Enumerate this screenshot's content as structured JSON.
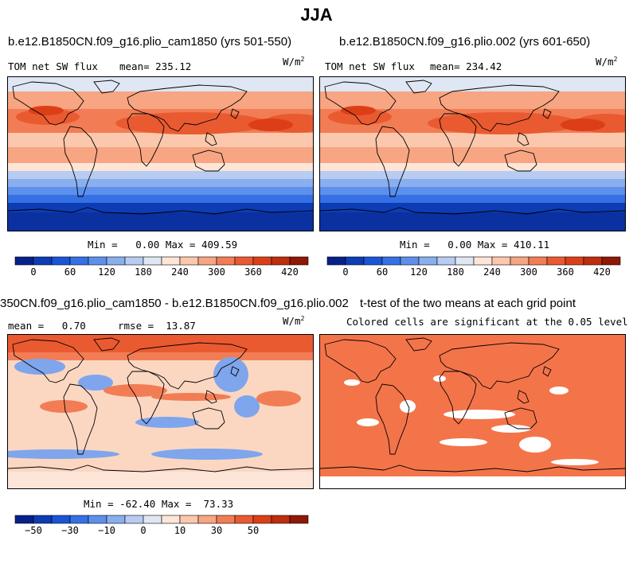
{
  "title": "JJA",
  "panels": [
    {
      "title": "b.e12.B1850CN.f09_g16.plio_cam1850 (yrs 501-550)",
      "left_label": "TOM net SW flux",
      "stat_label": "mean= 235.12",
      "units_base": "W/m",
      "units_exp": "2",
      "minmax": "Min =   0.00 Max = 409.59"
    },
    {
      "title": "b.e12.B1850CN.f09_g16.plio.002 (yrs 601-650)",
      "left_label": "TOM net SW flux",
      "stat_label": "mean= 234.42",
      "units_base": "W/m",
      "units_exp": "2",
      "minmax": "Min =   0.00 Max = 410.11"
    },
    {
      "title": "350CN.f09_g16.plio_cam1850 - b.e12.B1850CN.f09_g16.plio.002",
      "left_label": "mean =   0.70",
      "stat_label": "rmse =  13.87",
      "units_base": "W/m",
      "units_exp": "2",
      "minmax": "Min = -62.40 Max =  73.33"
    },
    {
      "title": "t-test of the two means at each grid point",
      "subtitle": "Colored cells are significant at the 0.05 level"
    }
  ],
  "colorbars": {
    "abs": {
      "colors": [
        "#07208a",
        "#0d3db5",
        "#1a55d8",
        "#3571e5",
        "#5d90ec",
        "#89afef",
        "#b8ccf1",
        "#dfe7f4",
        "#fde5d8",
        "#fbc8ad",
        "#f7a582",
        "#f27d55",
        "#ea5a30",
        "#dc3f17",
        "#c02d0d",
        "#901806"
      ],
      "tick_labels": [
        "0",
        "60",
        "120",
        "180",
        "240",
        "300",
        "360",
        "420"
      ]
    },
    "diff": {
      "colors": [
        "#07208a",
        "#0d3db5",
        "#1a55d8",
        "#3571e5",
        "#5d90ec",
        "#89afef",
        "#b8ccf1",
        "#dfe7f4",
        "#fde5d8",
        "#fbc8ad",
        "#f7a582",
        "#f27d55",
        "#ea5a30",
        "#dc3f17",
        "#c02d0d",
        "#901806"
      ],
      "tick_labels": [
        "-50",
        "-30",
        "-10",
        "0",
        "10",
        "30",
        "50"
      ]
    }
  },
  "map_colors": {
    "ocean_dark": "#0d3db5",
    "antarctic": "#0b30a0",
    "mid": "#f6a582",
    "high": "#ea5a30",
    "peak": "#dc3f17",
    "diff_bg": "#fbd7c2",
    "diff_neg": "#7fa5ec",
    "diff_pos": "#f27d55",
    "ttest": "#f4744a"
  }
}
